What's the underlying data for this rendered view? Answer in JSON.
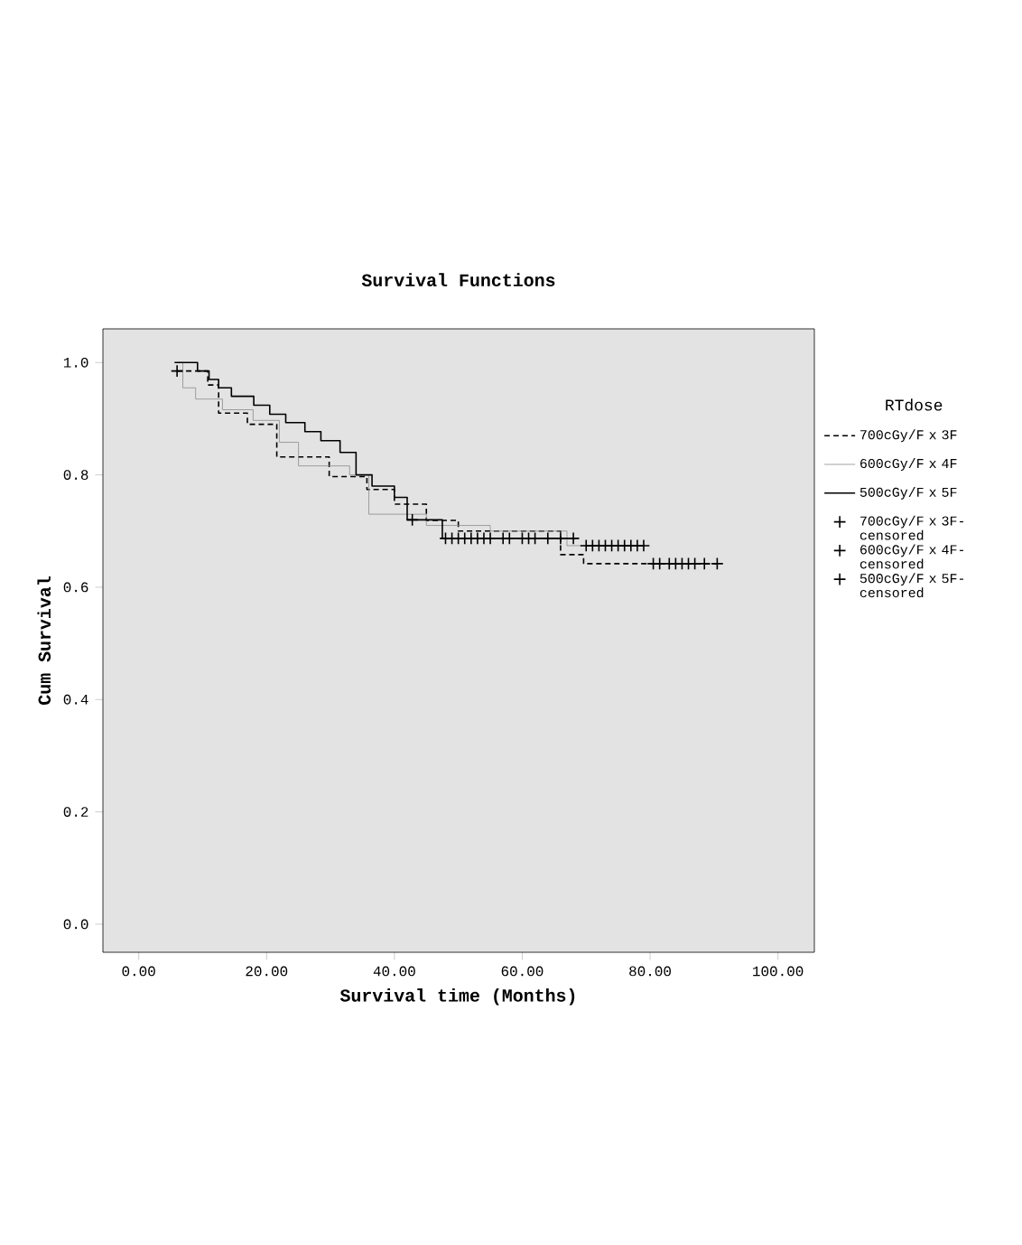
{
  "chart_data": {
    "type": "step",
    "title": "Survival Functions",
    "xlabel": "Survival time (Months)",
    "ylabel": "Cum Survival",
    "legend_title": "RTdose",
    "legend": "right",
    "xlim": [
      -5.6,
      105.7
    ],
    "ylim": [
      -0.05,
      1.06
    ],
    "xticks": [
      {
        "value": 0,
        "label": "0.00"
      },
      {
        "value": 20,
        "label": "20.00"
      },
      {
        "value": 40,
        "label": "40.00"
      },
      {
        "value": 60,
        "label": "60.00"
      },
      {
        "value": 80,
        "label": "80.00"
      },
      {
        "value": 100,
        "label": "100.00"
      }
    ],
    "yticks": [
      {
        "value": 0,
        "label": "0.0"
      },
      {
        "value": 0.2,
        "label": "0.2"
      },
      {
        "value": 0.4,
        "label": "0.4"
      },
      {
        "value": 0.6,
        "label": "0.6"
      },
      {
        "value": 0.8,
        "label": "0.8"
      },
      {
        "value": 1.0,
        "label": "1.0"
      }
    ],
    "series": [
      {
        "name": "700cGy/F x 3F",
        "color": "#000000",
        "line_style": "dashed",
        "x": [
          6,
          10.8,
          12.5,
          17,
          21.6,
          29.8,
          35.7,
          40,
          45,
          50,
          66,
          69.6,
          90.5
        ],
        "values": [
          0.985,
          0.96,
          0.91,
          0.89,
          0.832,
          0.797,
          0.774,
          0.748,
          0.719,
          0.7,
          0.658,
          0.642,
          0.642
        ]
      },
      {
        "name": "600cGy/F x 4F",
        "color": "#8c8c8c",
        "line_style": "solid",
        "x": [
          6,
          6.9,
          8.9,
          13.1,
          17.9,
          22,
          25,
          33,
          36,
          45,
          55,
          67,
          79
        ],
        "values": [
          1.0,
          0.955,
          0.935,
          0.916,
          0.897,
          0.858,
          0.816,
          0.8,
          0.73,
          0.71,
          0.7,
          0.674,
          0.674
        ]
      },
      {
        "name": "500cGy/F x 5F",
        "color": "#000000",
        "line_style": "solid",
        "x": [
          5.6,
          9.2,
          11,
          12.5,
          14.5,
          18,
          20.5,
          23,
          26,
          28.5,
          31.5,
          34,
          36.5,
          40,
          42,
          47.5,
          68.5
        ],
        "values": [
          1.0,
          0.985,
          0.97,
          0.955,
          0.94,
          0.924,
          0.908,
          0.893,
          0.877,
          0.861,
          0.84,
          0.8,
          0.78,
          0.76,
          0.72,
          0.687,
          0.687
        ]
      },
      {
        "name": "700cGy/F x 3F-censored",
        "type": "scatter",
        "marker": "cross",
        "color": "#000000",
        "x": [
          6,
          80.5,
          81.5,
          83,
          84,
          85,
          86,
          87,
          88.5,
          90.5
        ],
        "values": [
          0.985,
          0.642,
          0.642,
          0.642,
          0.642,
          0.642,
          0.642,
          0.642,
          0.642,
          0.642
        ]
      },
      {
        "name": "600cGy/F x 4F-censored",
        "type": "scatter",
        "marker": "cross",
        "color": "#000000",
        "x": [
          70,
          71,
          72,
          73,
          74,
          75,
          76,
          77,
          78,
          79
        ],
        "values": [
          0.674,
          0.674,
          0.674,
          0.674,
          0.674,
          0.674,
          0.674,
          0.674,
          0.674,
          0.674
        ]
      },
      {
        "name": "500cGy/F x 5F-censored",
        "type": "scatter",
        "marker": "cross",
        "color": "#000000",
        "x": [
          42.8,
          48,
          49,
          50,
          51,
          52,
          53,
          54,
          55,
          57,
          58,
          60,
          61,
          62,
          64,
          66,
          68
        ],
        "values": [
          0.72,
          0.687,
          0.687,
          0.687,
          0.687,
          0.687,
          0.687,
          0.687,
          0.687,
          0.687,
          0.687,
          0.687,
          0.687,
          0.687,
          0.687,
          0.687,
          0.687
        ]
      }
    ]
  }
}
